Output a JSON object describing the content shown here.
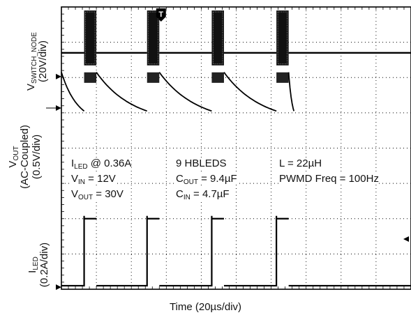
{
  "chart_data": {
    "type": "line",
    "title": "",
    "xlabel": "Time (20µs/div)",
    "grid": true,
    "x_divisions": 10,
    "y_divisions": 8,
    "trigger_marker": "T",
    "channels": [
      {
        "name": "V_SWITCH_NODE",
        "label_main": "V",
        "label_sub": "SWITCH_NODE",
        "scale": "(20V/div)",
        "description": "switch node voltage: 0V baseline at marker, bursts during PWM-on",
        "burst_start_us": [
          13,
          49,
          86,
          123
        ],
        "burst_duration_us": 7,
        "level_off_div": 1.3,
        "level_on_top_div": 2.4
      },
      {
        "name": "V_OUT",
        "label_main": "V",
        "label_sub": "OUT",
        "coupling": "(AC-Coupled)",
        "scale": "(0.5V/div)",
        "description": "output voltage ripple, decaying ramp between PWM bursts"
      },
      {
        "name": "I_LED",
        "label_main": "I",
        "label_sub": "LED",
        "scale": "(0.2A/div)",
        "on_level_A": 0.36,
        "off_level_A": 0
      }
    ],
    "annotations": [
      {
        "main": "I",
        "sub": "LED",
        "rest": " @ 0.36A"
      },
      {
        "main": "V",
        "sub": "IN",
        "rest": " = 12V"
      },
      {
        "main": "V",
        "sub": "OUT",
        "rest": " = 30V"
      },
      {
        "main": "9 HBLEDS",
        "sub": "",
        "rest": ""
      },
      {
        "main": "C",
        "sub": "OUT",
        "rest": " = 9.4µF"
      },
      {
        "main": "C",
        "sub": "IN",
        "rest": " = 4.7µF"
      },
      {
        "main": "L = 22µH",
        "sub": "",
        "rest": ""
      },
      {
        "main": "PWMD Freq = 100Hz",
        "sub": "",
        "rest": ""
      }
    ]
  }
}
